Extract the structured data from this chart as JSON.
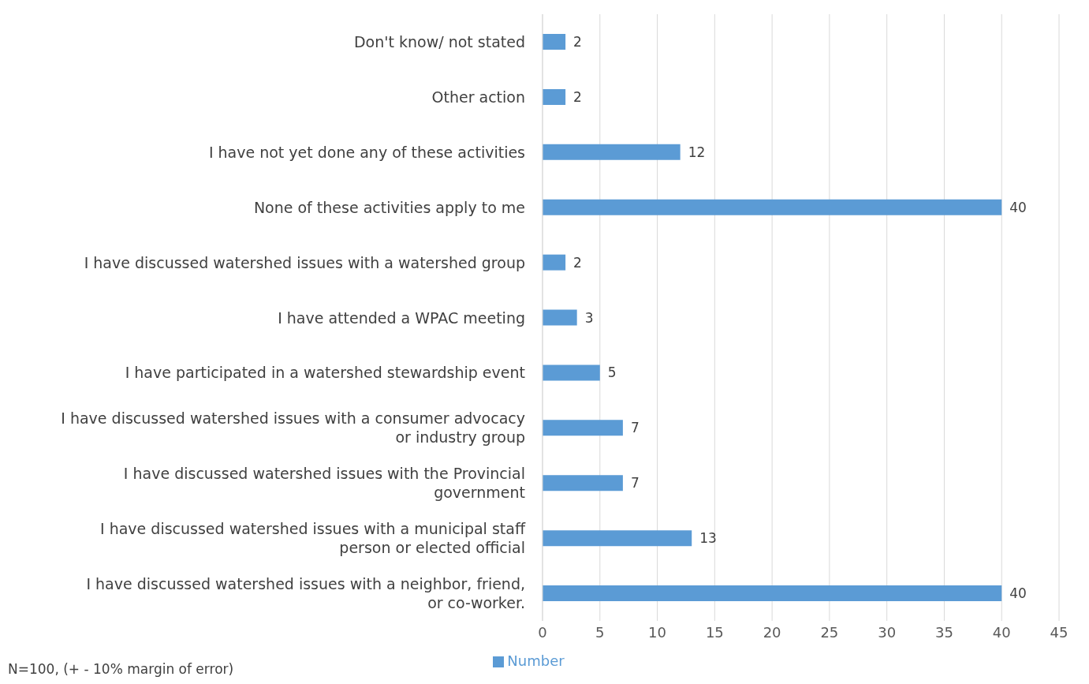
{
  "chart_data": {
    "type": "bar",
    "orientation": "horizontal",
    "categories": [
      "Don't know/ not stated",
      "Other action",
      "I have not yet done any of these activities",
      "None of these activities apply to me",
      "I have discussed watershed issues with a watershed group",
      "I have attended a WPAC meeting",
      "I have participated in a watershed stewardship event",
      "I have discussed watershed issues with a consumer advocacy or industry group",
      "I have discussed watershed issues with the Provincial government",
      "I have discussed watershed issues with a municipal staff person or elected official",
      "I have discussed watershed issues with a neighbor, friend, or co-worker."
    ],
    "series": [
      {
        "name": "Number",
        "color": "#5b9bd5",
        "values": [
          2,
          2,
          12,
          40,
          2,
          3,
          5,
          7,
          7,
          13,
          40
        ]
      }
    ],
    "xlim": [
      0,
      45
    ],
    "xticks": [
      0,
      5,
      10,
      15,
      20,
      25,
      30,
      35,
      40,
      45
    ],
    "grid": "x",
    "legend": "bottom",
    "data_labels": true,
    "annotations": [
      "N=100, (+ - 10% margin of error)"
    ]
  }
}
